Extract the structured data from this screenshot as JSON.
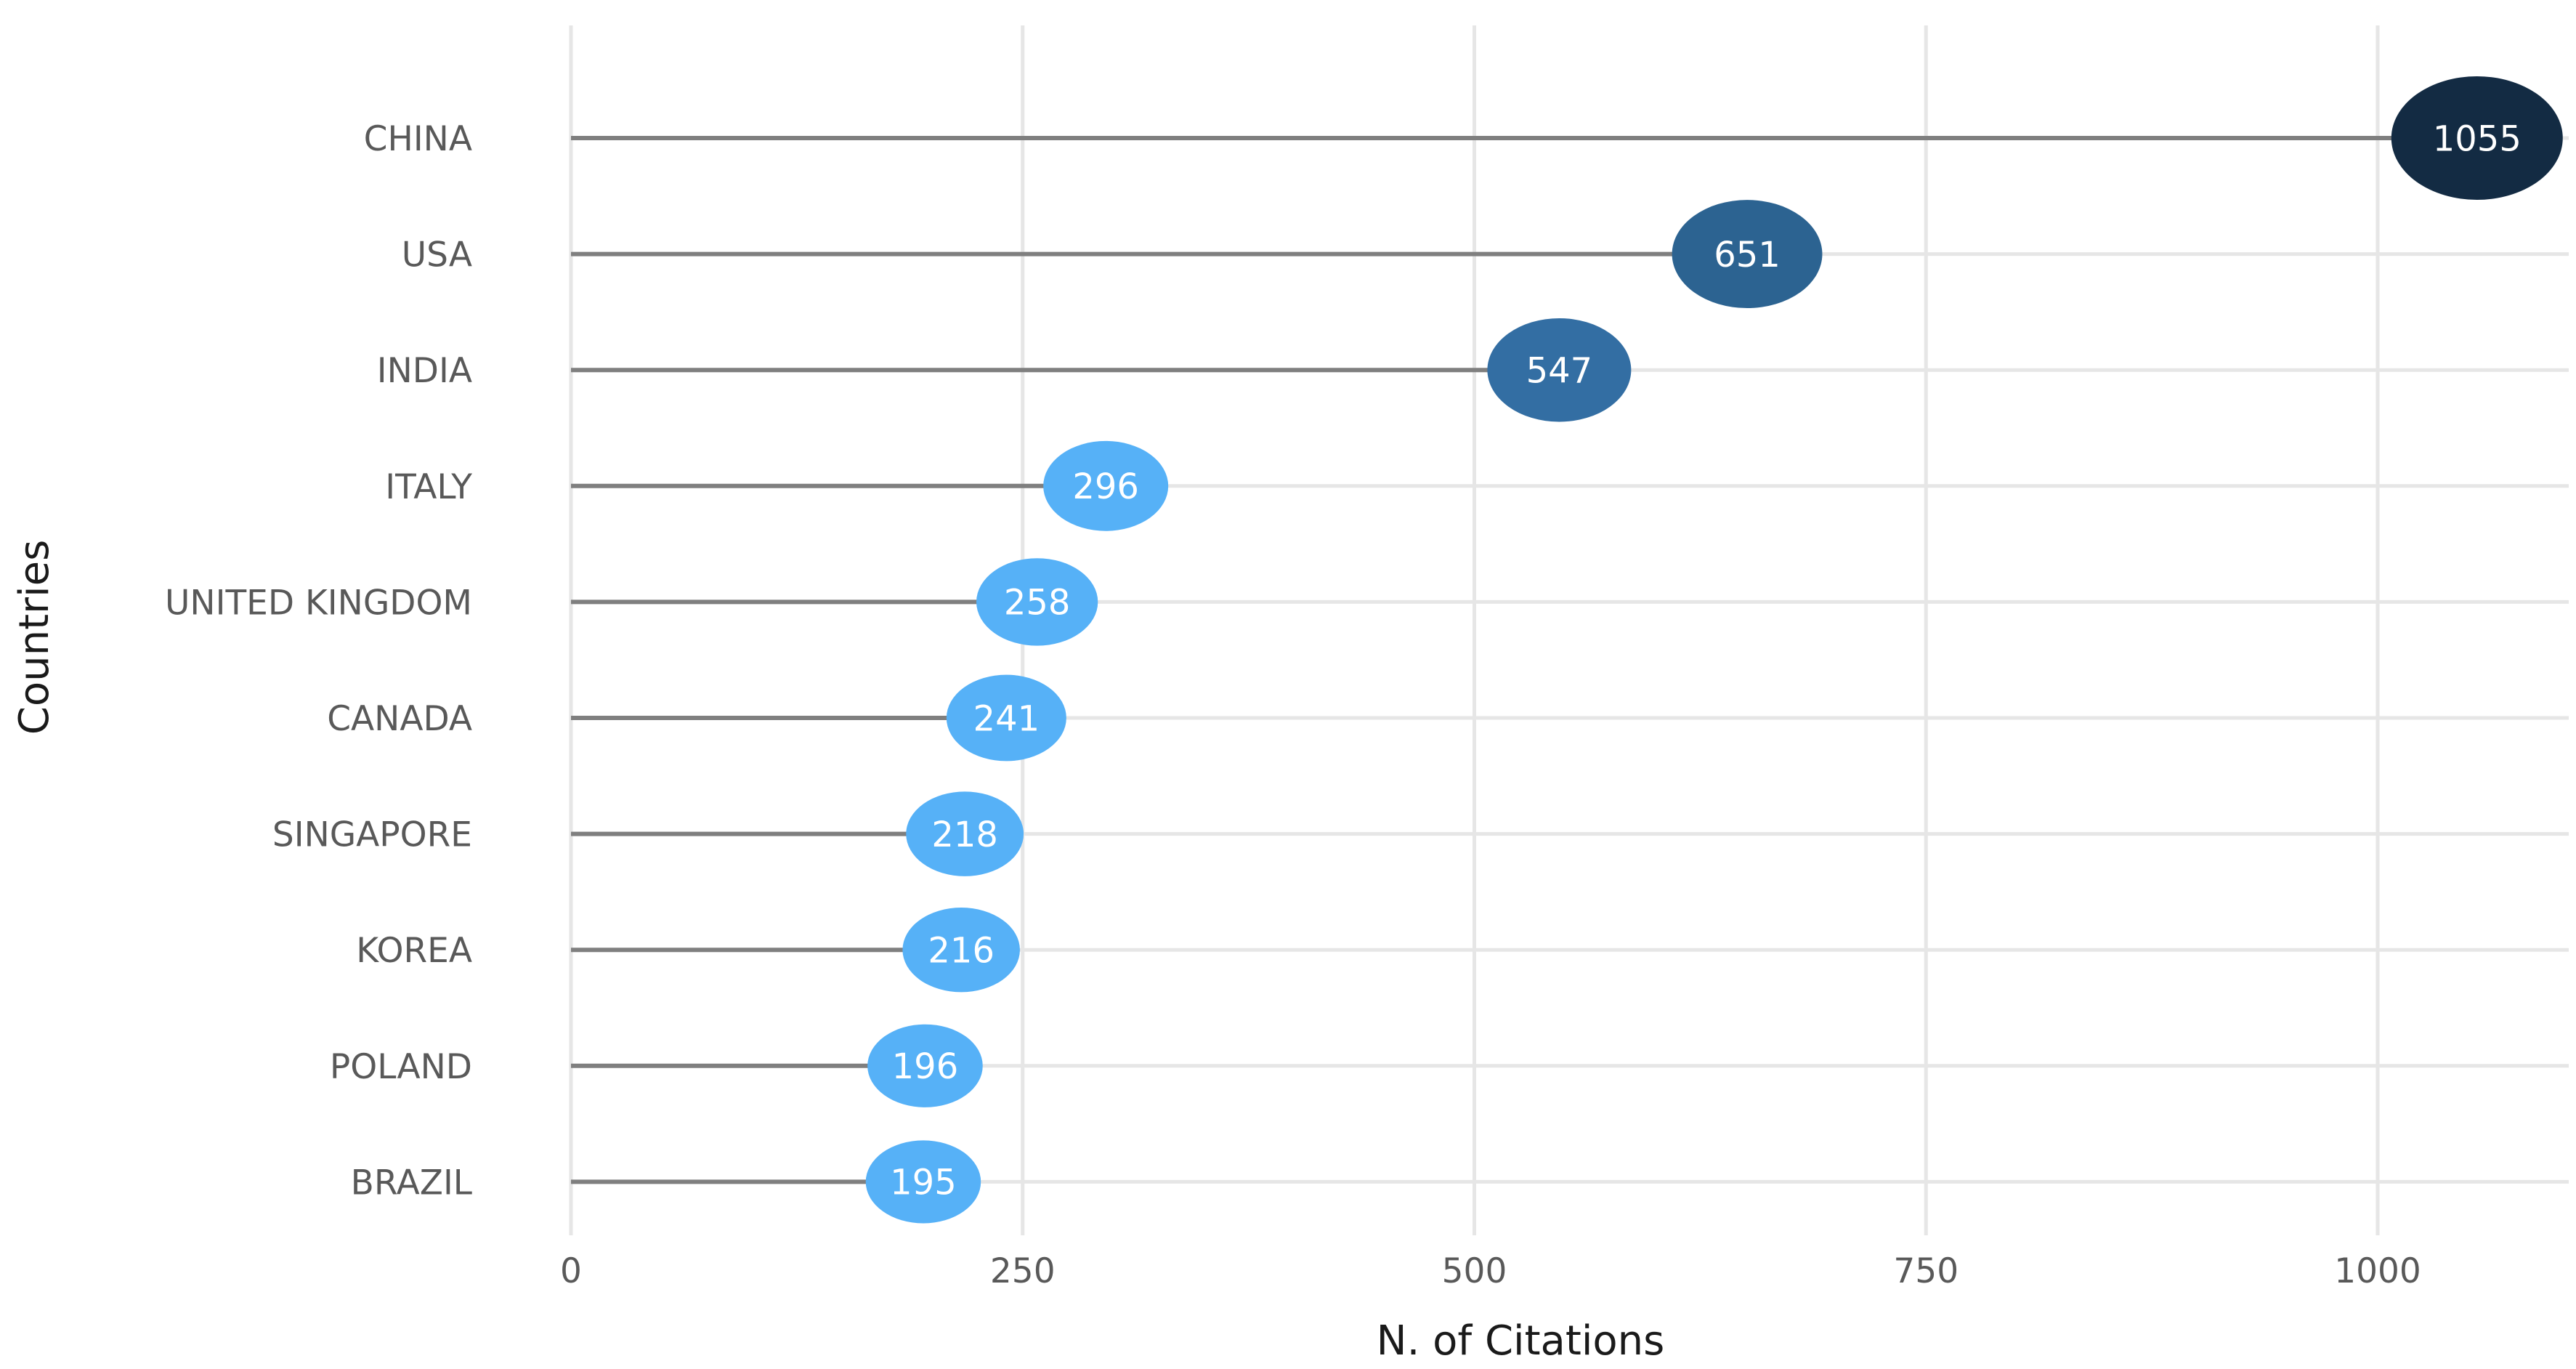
{
  "chart_data": {
    "type": "lollipop",
    "title": "",
    "xlabel": "N. of Citations",
    "ylabel": "Countries",
    "xlim": [
      0,
      1100
    ],
    "x_ticks": [
      0,
      250,
      500,
      750,
      1000
    ],
    "x_tick_labels": [
      "0",
      "250",
      "500",
      "750",
      "1000"
    ],
    "grid": true,
    "categories": [
      "CHINA",
      "USA",
      "INDIA",
      "ITALY",
      "UNITED KINGDOM",
      "CANADA",
      "SINGAPORE",
      "KOREA",
      "POLAND",
      "BRAZIL"
    ],
    "values": [
      1055,
      651,
      547,
      296,
      258,
      241,
      218,
      216,
      196,
      195
    ],
    "value_labels": [
      "1055",
      "651",
      "547",
      "296",
      "258",
      "241",
      "218",
      "216",
      "196",
      "195"
    ],
    "point_colors": [
      "#132b43",
      "#2c6391",
      "#336ea3",
      "#56b1f7",
      "#56b1f7",
      "#56b1f7",
      "#56b1f7",
      "#56b1f7",
      "#56b1f7",
      "#56b1f7"
    ]
  }
}
